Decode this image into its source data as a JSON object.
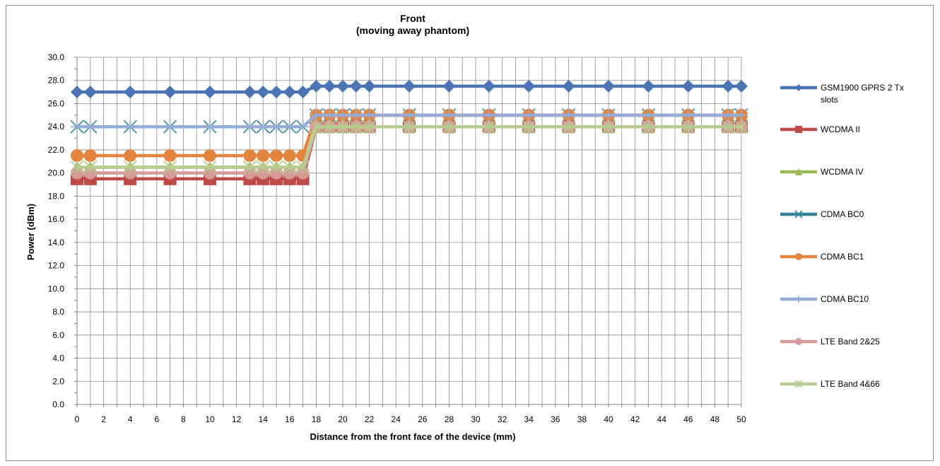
{
  "chart_data": {
    "type": "line",
    "title": "Front",
    "subtitle": "(moving away phantom)",
    "xlabel": "Distance from the front face of the device (mm)",
    "ylabel": "Power (dBm)",
    "xlim": [
      0,
      50
    ],
    "ylim": [
      0,
      30
    ],
    "x_ticks": [
      0,
      2,
      4,
      6,
      8,
      10,
      12,
      14,
      16,
      18,
      20,
      22,
      24,
      26,
      28,
      30,
      32,
      34,
      36,
      38,
      40,
      42,
      44,
      46,
      48,
      50
    ],
    "y_ticks": [
      "0.0",
      "2.0",
      "4.0",
      "6.0",
      "8.0",
      "10.0",
      "12.0",
      "14.0",
      "16.0",
      "18.0",
      "20.0",
      "22.0",
      "24.0",
      "26.0",
      "28.0",
      "30.0"
    ],
    "grid": true,
    "legend_position": "right",
    "x": [
      0,
      1,
      4,
      7,
      10,
      13,
      14,
      15,
      16,
      17,
      18,
      19,
      20,
      21,
      22,
      25,
      28,
      31,
      34,
      37,
      40,
      43,
      46,
      49,
      50
    ],
    "series": [
      {
        "name": "GSM1900 GPRS 2 Tx slots",
        "color": "#4a74b4",
        "marker": "diamond",
        "values": [
          27,
          27,
          27,
          27,
          27,
          27,
          27,
          27,
          27,
          27,
          27.5,
          27.5,
          27.5,
          27.5,
          27.5,
          27.5,
          27.5,
          27.5,
          27.5,
          27.5,
          27.5,
          27.5,
          27.5,
          27.5,
          27.5
        ]
      },
      {
        "name": "WCDMA II",
        "color": "#be4b48",
        "marker": "square",
        "values": [
          19.5,
          19.5,
          19.5,
          19.5,
          19.5,
          19.5,
          19.5,
          19.5,
          19.5,
          19.5,
          24,
          24,
          24,
          24,
          24,
          24,
          24,
          24,
          24,
          24,
          24,
          24,
          24,
          24,
          24
        ]
      },
      {
        "name": "WCDMA IV",
        "color": "#98b954",
        "marker": "triangle",
        "values": [
          20.5,
          20.5,
          20.5,
          20.5,
          20.5,
          20.5,
          20.5,
          20.5,
          20.5,
          20.5,
          24,
          24,
          24,
          24,
          24,
          24,
          24,
          24,
          24,
          24,
          24,
          24,
          24,
          24,
          24
        ]
      },
      {
        "name": "CDMA BC0",
        "color": "#31849b",
        "marker": "x",
        "values": [
          24,
          24,
          24,
          24,
          24,
          24,
          24,
          24,
          24,
          24,
          25,
          25,
          25,
          25,
          25,
          25,
          25,
          25,
          25,
          25,
          25,
          25,
          25,
          25,
          25
        ]
      },
      {
        "name": "CDMA BC1",
        "color": "#e3843f",
        "marker": "circle",
        "values": [
          21.5,
          21.5,
          21.5,
          21.5,
          21.5,
          21.5,
          21.5,
          21.5,
          21.5,
          21.5,
          25,
          25,
          25,
          25,
          25,
          25,
          25,
          25,
          25,
          25,
          25,
          25,
          25,
          25,
          25
        ]
      },
      {
        "name": "CDMA BC10",
        "color": "#95acd6",
        "marker": "plus",
        "values": [
          24,
          24,
          24,
          24,
          24,
          24,
          24,
          24,
          24,
          24,
          25,
          25,
          25,
          25,
          25,
          25,
          25,
          25,
          25,
          25,
          25,
          25,
          25,
          25,
          25
        ]
      },
      {
        "name": "LTE Band 2&25",
        "color": "#d69b98",
        "marker": "circle",
        "values": [
          20,
          20,
          20,
          20,
          20,
          20,
          20,
          20,
          20,
          20,
          24,
          24,
          24,
          24,
          24,
          24,
          24,
          24,
          24,
          24,
          24,
          24,
          24,
          24,
          24
        ]
      },
      {
        "name": "LTE Band 4&66",
        "color": "#b6cd8f",
        "marker": "star",
        "values": [
          20.5,
          20.5,
          20.5,
          20.5,
          20.5,
          20.5,
          20.5,
          20.5,
          20.5,
          20.5,
          24,
          24,
          24,
          24,
          24,
          24,
          24,
          24,
          24,
          24,
          24,
          24,
          24,
          24,
          24
        ]
      }
    ]
  }
}
